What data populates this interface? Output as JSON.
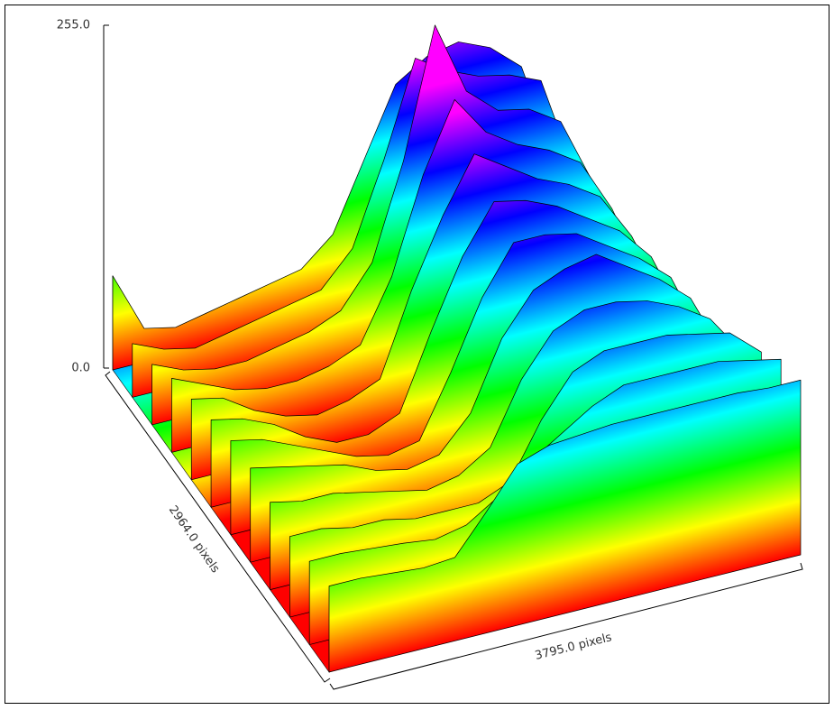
{
  "chart_data": {
    "type": "surface",
    "x_label": "3795.0 pixels",
    "y_label": "2964.0 pixels",
    "zlim": [
      0,
      255
    ],
    "zticks": [
      {
        "value": 255,
        "label": "255.0"
      },
      {
        "value": 0,
        "label": "0.0"
      }
    ],
    "rows": [
      [
        70,
        25,
        20,
        25,
        30,
        35,
        40,
        60,
        110,
        160,
        175,
        180,
        170,
        150,
        80,
        30
      ],
      [
        40,
        30,
        25,
        30,
        35,
        40,
        45,
        70,
        130,
        200,
        185,
        175,
        170,
        160,
        90,
        35
      ],
      [
        45,
        35,
        30,
        30,
        35,
        40,
        50,
        80,
        150,
        245,
        190,
        170,
        165,
        150,
        100,
        40
      ],
      [
        55,
        45,
        35,
        30,
        30,
        35,
        45,
        90,
        160,
        210,
        180,
        165,
        155,
        140,
        100,
        45
      ],
      [
        60,
        55,
        40,
        30,
        25,
        30,
        40,
        100,
        150,
        190,
        175,
        160,
        150,
        135,
        100,
        50
      ],
      [
        65,
        60,
        50,
        35,
        25,
        25,
        35,
        90,
        140,
        175,
        170,
        160,
        145,
        130,
        105,
        55
      ],
      [
        70,
        65,
        55,
        45,
        35,
        30,
        35,
        80,
        130,
        165,
        165,
        160,
        145,
        130,
        110,
        60
      ],
      [
        70,
        65,
        60,
        55,
        45,
        40,
        45,
        70,
        120,
        150,
        160,
        165,
        150,
        135,
        115,
        70
      ],
      [
        65,
        60,
        60,
        55,
        50,
        45,
        50,
        65,
        110,
        140,
        150,
        150,
        145,
        135,
        120,
        90
      ],
      [
        60,
        60,
        55,
        55,
        50,
        50,
        50,
        60,
        100,
        130,
        140,
        140,
        140,
        135,
        130,
        110
      ],
      [
        62,
        62,
        60,
        58,
        55,
        60,
        75,
        95,
        110,
        125,
        135,
        135,
        135,
        135,
        130,
        125
      ],
      [
        64,
        64,
        62,
        60,
        62,
        90,
        120,
        128,
        130,
        132,
        132,
        132,
        132,
        132,
        130,
        130
      ]
    ]
  }
}
